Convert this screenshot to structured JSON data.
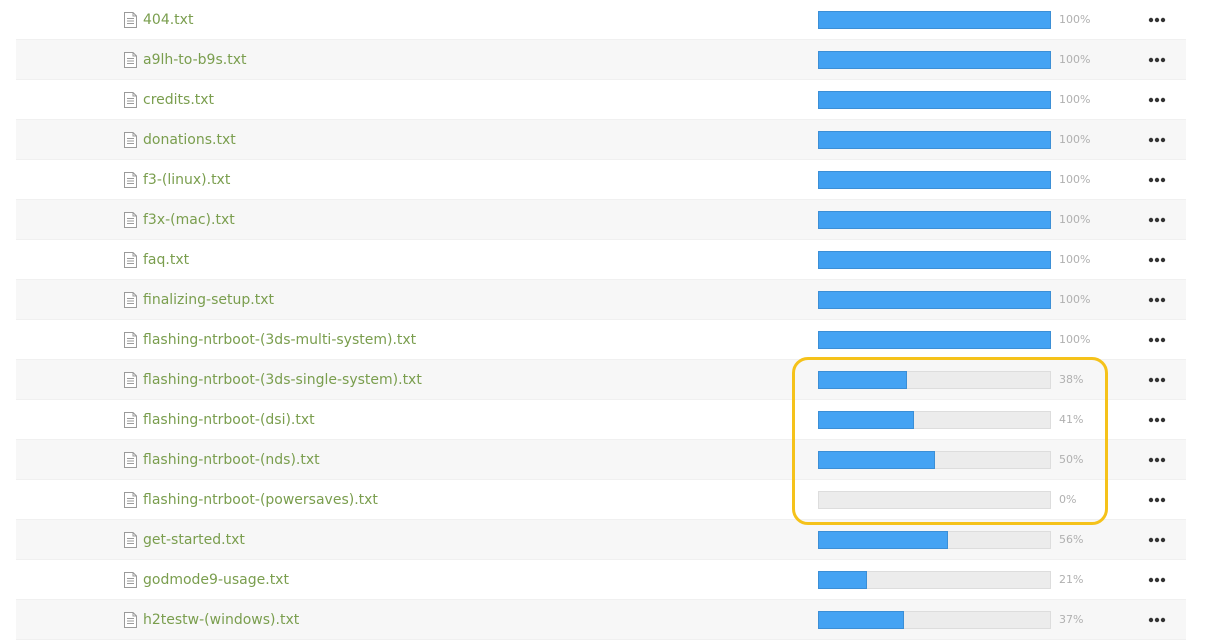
{
  "colors": {
    "link": "#7a9e4e",
    "progress_fill": "#45a3f3",
    "progress_track": "#ececec",
    "highlight": "#f5c21a"
  },
  "icons": {
    "file": "file-text-icon",
    "more": "more-horizontal-icon"
  },
  "files": [
    {
      "name": "404.txt",
      "progress": 100,
      "progress_label": "100%"
    },
    {
      "name": "a9lh-to-b9s.txt",
      "progress": 100,
      "progress_label": "100%"
    },
    {
      "name": "credits.txt",
      "progress": 100,
      "progress_label": "100%"
    },
    {
      "name": "donations.txt",
      "progress": 100,
      "progress_label": "100%"
    },
    {
      "name": "f3-(linux).txt",
      "progress": 100,
      "progress_label": "100%"
    },
    {
      "name": "f3x-(mac).txt",
      "progress": 100,
      "progress_label": "100%"
    },
    {
      "name": "faq.txt",
      "progress": 100,
      "progress_label": "100%"
    },
    {
      "name": "finalizing-setup.txt",
      "progress": 100,
      "progress_label": "100%"
    },
    {
      "name": "flashing-ntrboot-(3ds-multi-system).txt",
      "progress": 100,
      "progress_label": "100%"
    },
    {
      "name": "flashing-ntrboot-(3ds-single-system).txt",
      "progress": 38,
      "progress_label": "38%"
    },
    {
      "name": "flashing-ntrboot-(dsi).txt",
      "progress": 41,
      "progress_label": "41%"
    },
    {
      "name": "flashing-ntrboot-(nds).txt",
      "progress": 50,
      "progress_label": "50%"
    },
    {
      "name": "flashing-ntrboot-(powersaves).txt",
      "progress": 0,
      "progress_label": "0%"
    },
    {
      "name": "get-started.txt",
      "progress": 56,
      "progress_label": "56%"
    },
    {
      "name": "godmode9-usage.txt",
      "progress": 21,
      "progress_label": "21%"
    },
    {
      "name": "h2testw-(windows).txt",
      "progress": 37,
      "progress_label": "37%"
    }
  ]
}
